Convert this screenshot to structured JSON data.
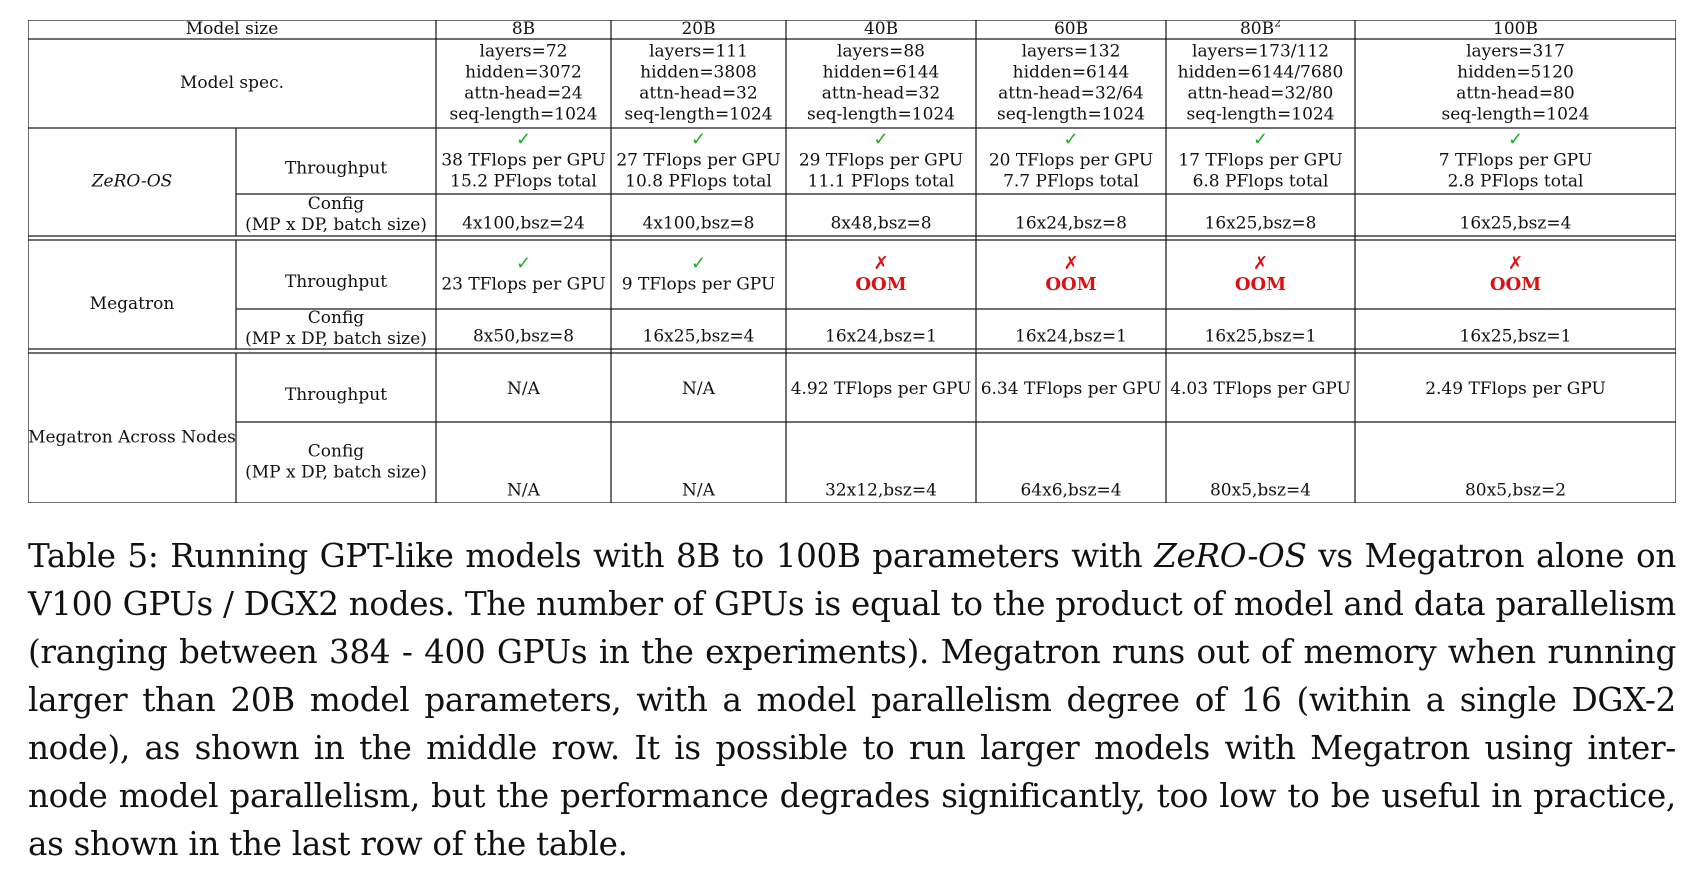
{
  "table": {
    "header": {
      "label": "Model size",
      "models": [
        {
          "size": "8B",
          "sup": ""
        },
        {
          "size": "20B",
          "sup": ""
        },
        {
          "size": "40B",
          "sup": ""
        },
        {
          "size": "60B",
          "sup": ""
        },
        {
          "size": "80B",
          "sup": "2"
        },
        {
          "size": "100B",
          "sup": ""
        }
      ]
    },
    "spec": {
      "label": "Model spec.",
      "cols": [
        [
          "layers=72",
          "hidden=3072",
          "attn-head=24",
          "seq-length=1024"
        ],
        [
          "layers=111",
          "hidden=3808",
          "attn-head=32",
          "seq-length=1024"
        ],
        [
          "layers=88",
          "hidden=6144",
          "attn-head=32",
          "seq-length=1024"
        ],
        [
          "layers=132",
          "hidden=6144",
          "attn-head=32/64",
          "seq-length=1024"
        ],
        [
          "layers=173/112",
          "hidden=6144/7680",
          "attn-head=32/80",
          "seq-length=1024"
        ],
        [
          "layers=317",
          "hidden=5120",
          "attn-head=80",
          "seq-length=1024"
        ]
      ]
    },
    "marks": {
      "check": "✓",
      "cross": "✗"
    },
    "groups": [
      {
        "name": "ZeRO-OS",
        "throughput_label": "Throughput",
        "config_label": [
          "Config",
          "(MP x DP, batch size)"
        ],
        "cells": [
          {
            "status": "check",
            "lines": [
              "38 TFlops per GPU",
              "15.2 PFlops total"
            ]
          },
          {
            "status": "check",
            "lines": [
              "27 TFlops per GPU",
              "10.8 PFlops total"
            ]
          },
          {
            "status": "check",
            "lines": [
              "29 TFlops per GPU",
              "11.1 PFlops total"
            ]
          },
          {
            "status": "check",
            "lines": [
              "20 TFlops per GPU",
              "7.7 PFlops total"
            ]
          },
          {
            "status": "check",
            "lines": [
              "17 TFlops per GPU",
              "6.8 PFlops total"
            ]
          },
          {
            "status": "check",
            "lines": [
              "7 TFlops per GPU",
              "2.8 PFlops total"
            ]
          }
        ],
        "config": [
          "4x100,bsz=24",
          "4x100,bsz=8",
          "8x48,bsz=8",
          "16x24,bsz=8",
          "16x25,bsz=8",
          "16x25,bsz=4"
        ]
      },
      {
        "name": "Megatron",
        "throughput_label": "Throughput",
        "config_label": [
          "Config",
          "(MP x DP, batch size)"
        ],
        "cells": [
          {
            "status": "check",
            "lines": [
              "23 TFlops per GPU"
            ]
          },
          {
            "status": "check",
            "lines": [
              "9 TFlops per GPU"
            ]
          },
          {
            "status": "cross",
            "lines": [
              "OOM"
            ]
          },
          {
            "status": "cross",
            "lines": [
              "OOM"
            ]
          },
          {
            "status": "cross",
            "lines": [
              "OOM"
            ]
          },
          {
            "status": "cross",
            "lines": [
              "OOM"
            ]
          }
        ],
        "config": [
          "8x50,bsz=8",
          "16x25,bsz=4",
          "16x24,bsz=1",
          "16x24,bsz=1",
          "16x25,bsz=1",
          "16x25,bsz=1"
        ]
      },
      {
        "name": "Megatron Across Nodes",
        "throughput_label": "Throughput",
        "config_label": [
          "Config",
          "(MP x DP, batch size)"
        ],
        "cells": [
          {
            "status": "",
            "lines": [
              "N/A"
            ]
          },
          {
            "status": "",
            "lines": [
              "N/A"
            ]
          },
          {
            "status": "",
            "lines": [
              "4.92 TFlops per GPU"
            ]
          },
          {
            "status": "",
            "lines": [
              "6.34 TFlops per GPU"
            ]
          },
          {
            "status": "",
            "lines": [
              "4.03 TFlops per GPU"
            ]
          },
          {
            "status": "",
            "lines": [
              "2.49 TFlops per GPU"
            ]
          }
        ],
        "config": [
          "N/A",
          "N/A",
          "32x12,bsz=4",
          "64x6,bsz=4",
          "80x5,bsz=4",
          "80x5,bsz=2"
        ]
      }
    ]
  },
  "caption": {
    "label": "Table 5:",
    "text_before": "Running GPT-like models with 8B to 100B parameters with",
    "emph": "ZeRO-OS",
    "text_after": "vs Megatron alone on V100 GPUs / DGX2 nodes. The number of GPUs is equal to the product of model and data parallelism (ranging between 384 - 400 GPUs in the experiments). Megatron runs out of memory when running larger than 20B model parameters, with a model parallelism degree of 16 (within a single DGX-2 node), as shown in the middle row. It is possible to run larger models with Megatron using inter-node model parallelism, but the performance degrades significantly, too low to be useful in practice, as shown in the last row of the table."
  }
}
